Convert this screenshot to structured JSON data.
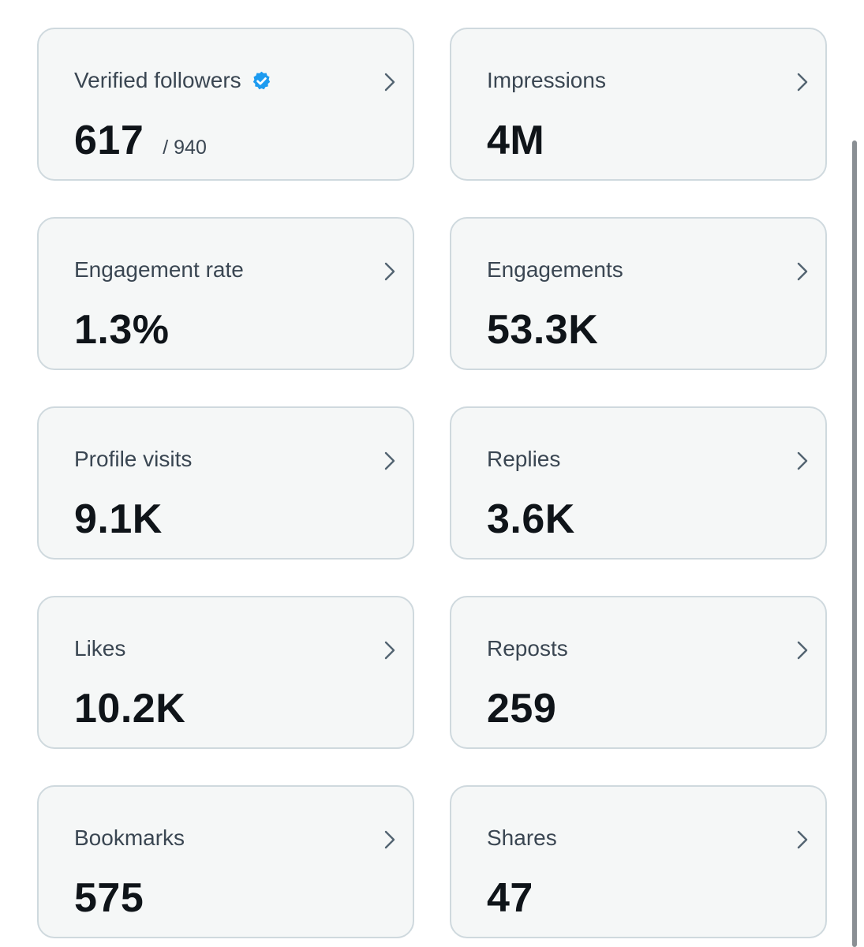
{
  "metrics": [
    {
      "label": "Verified followers",
      "value": "617",
      "total": "/ 940",
      "verified_icon": "verified-badge-icon",
      "accent": "#1d9bf0"
    },
    {
      "label": "Impressions",
      "value": "4M"
    },
    {
      "label": "Engagement rate",
      "value": "1.3%"
    },
    {
      "label": "Engagements",
      "value": "53.3K"
    },
    {
      "label": "Profile visits",
      "value": "9.1K"
    },
    {
      "label": "Replies",
      "value": "3.6K"
    },
    {
      "label": "Likes",
      "value": "10.2K"
    },
    {
      "label": "Reposts",
      "value": "259"
    },
    {
      "label": "Bookmarks",
      "value": "575"
    },
    {
      "label": "Shares",
      "value": "47"
    }
  ],
  "icons": {
    "card_arrow": "chevron-right-icon"
  }
}
